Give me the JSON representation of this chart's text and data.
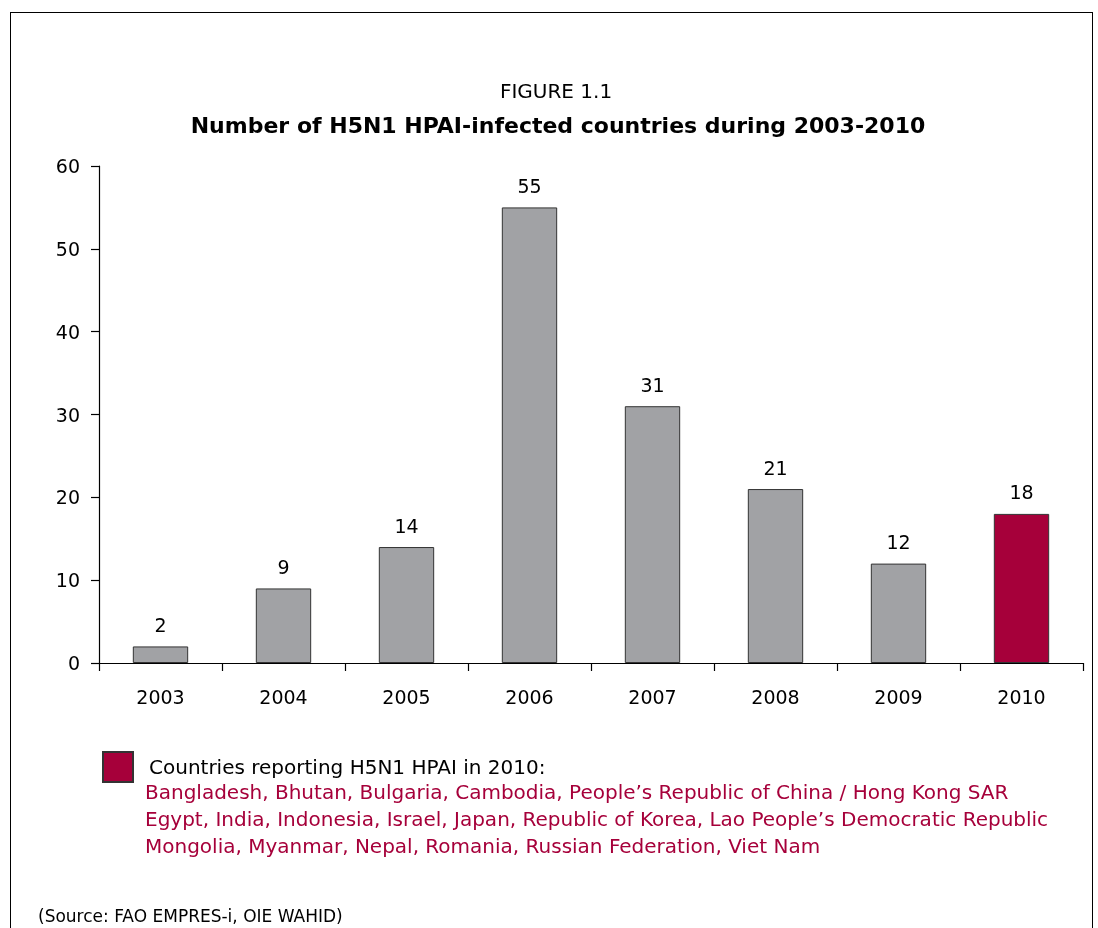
{
  "chart_data": {
    "type": "bar",
    "title": "FIGURE 1.1",
    "subtitle": "Number of H5N1 HPAI-infected countries during 2003-2010",
    "categories": [
      "2003",
      "2004",
      "2005",
      "2006",
      "2007",
      "2008",
      "2009",
      "2010"
    ],
    "series": [
      {
        "color": "#a1a2a5",
        "values": [
          2,
          9,
          14,
          55,
          31,
          21,
          12,
          null
        ]
      },
      {
        "name": "Countries reporting H5N1 HPAI in 2010:",
        "color": "#a6003a",
        "values": [
          null,
          null,
          null,
          null,
          null,
          null,
          null,
          18
        ]
      }
    ],
    "ylim": [
      0,
      60
    ],
    "yticks": [
      0,
      10,
      20,
      30,
      40,
      50,
      60
    ],
    "data_labels": true,
    "legend": "bottom left",
    "grid": false,
    "annotations": [
      "Bangladesh, Bhutan, Bulgaria, Cambodia, People’s Republic of China / Hong Kong SAR\nEgypt, India, Indonesia, Israel, Japan, Republic of Korea, Lao People’s Democratic Republic\nMongolia, Myanmar, Nepal, Romania, Russian Federation, Viet Nam",
      "(Source: FAO EMPRES-i, OIE WAHID)"
    ]
  }
}
